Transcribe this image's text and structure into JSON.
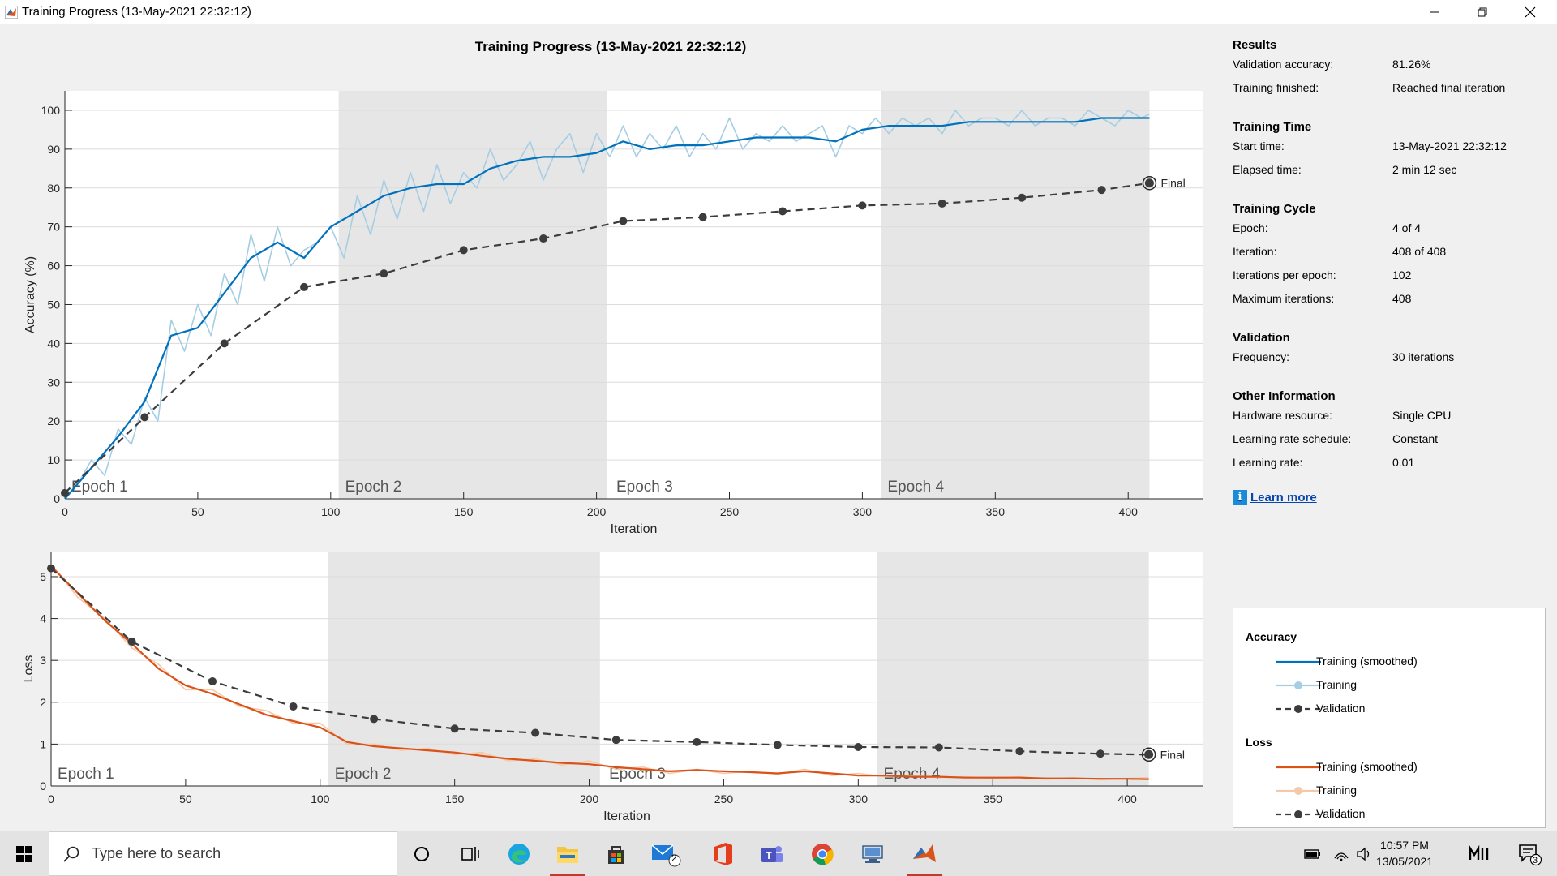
{
  "window": {
    "title": "Training Progress (13-May-2021 22:32:12)",
    "icons": {
      "app": "matlab-icon",
      "minimize": "minimize-icon",
      "maximize": "restore-icon",
      "close": "close-icon"
    }
  },
  "plot_title": "Training Progress (13-May-2021 22:32:12)",
  "chart_data": [
    {
      "type": "line",
      "title": "",
      "xlabel": "Iteration",
      "ylabel": "Accuracy (%)",
      "xlim": [
        0,
        428
      ],
      "ylim": [
        0,
        105
      ],
      "xticks": [
        0,
        50,
        100,
        150,
        200,
        250,
        300,
        350,
        400
      ],
      "yticks": [
        0,
        10,
        20,
        30,
        40,
        50,
        60,
        70,
        80,
        90,
        100
      ],
      "grid": true,
      "epochs": [
        {
          "label": "Epoch 1",
          "start": 0,
          "end": 102,
          "shaded": false
        },
        {
          "label": "Epoch 2",
          "start": 103,
          "end": 204,
          "shaded": true
        },
        {
          "label": "Epoch 3",
          "start": 205,
          "end": 306,
          "shaded": false
        },
        {
          "label": "Epoch 4",
          "start": 307,
          "end": 408,
          "shaded": true
        }
      ],
      "series": [
        {
          "name": "Training (smoothed)",
          "color": "#0072bd",
          "x": [
            0,
            10,
            20,
            30,
            40,
            50,
            60,
            70,
            80,
            90,
            100,
            110,
            120,
            130,
            140,
            150,
            160,
            170,
            180,
            190,
            200,
            210,
            220,
            230,
            240,
            250,
            260,
            270,
            280,
            290,
            300,
            310,
            320,
            330,
            340,
            350,
            360,
            370,
            380,
            390,
            400,
            408
          ],
          "y": [
            0,
            8,
            16,
            25,
            42,
            44,
            53,
            62,
            66,
            62,
            70,
            74,
            78,
            80,
            81,
            81,
            85,
            87,
            88,
            88,
            89,
            92,
            90,
            91,
            91,
            92,
            93,
            93,
            93,
            92,
            95,
            96,
            96,
            96,
            97,
            97,
            97,
            97,
            97,
            98,
            98,
            98
          ]
        },
        {
          "name": "Training",
          "color": "#a6cee3",
          "x": [
            0,
            5,
            10,
            15,
            20,
            25,
            30,
            35,
            40,
            45,
            50,
            55,
            60,
            65,
            70,
            75,
            80,
            85,
            90,
            95,
            100,
            105,
            110,
            115,
            120,
            125,
            130,
            135,
            140,
            145,
            150,
            155,
            160,
            165,
            170,
            175,
            180,
            185,
            190,
            195,
            200,
            205,
            210,
            215,
            220,
            225,
            230,
            235,
            240,
            245,
            250,
            255,
            260,
            265,
            270,
            275,
            280,
            285,
            290,
            295,
            300,
            305,
            310,
            315,
            320,
            325,
            330,
            335,
            340,
            345,
            350,
            355,
            360,
            365,
            370,
            375,
            380,
            385,
            390,
            395,
            400,
            405,
            408
          ],
          "y": [
            0,
            4,
            10,
            6,
            18,
            14,
            26,
            20,
            46,
            38,
            50,
            42,
            58,
            50,
            68,
            56,
            70,
            60,
            64,
            66,
            70,
            62,
            78,
            68,
            82,
            72,
            84,
            74,
            86,
            76,
            84,
            80,
            90,
            82,
            86,
            92,
            82,
            90,
            94,
            84,
            94,
            88,
            96,
            88,
            94,
            90,
            96,
            88,
            94,
            90,
            98,
            90,
            94,
            92,
            96,
            92,
            94,
            96,
            88,
            96,
            94,
            98,
            94,
            98,
            96,
            98,
            94,
            100,
            96,
            98,
            98,
            96,
            100,
            96,
            98,
            98,
            96,
            100,
            98,
            96,
            100,
            98,
            99
          ]
        },
        {
          "name": "Validation",
          "color": "#3c3c3c",
          "x": [
            0,
            30,
            60,
            90,
            120,
            150,
            180,
            210,
            240,
            270,
            300,
            330,
            360,
            390,
            408
          ],
          "y": [
            1.5,
            21,
            40,
            54.5,
            58,
            64,
            67,
            71.5,
            72.5,
            74,
            75.5,
            76,
            77.5,
            79.5,
            81.26
          ]
        }
      ],
      "final_label": "Final"
    },
    {
      "type": "line",
      "title": "",
      "xlabel": "Iteration",
      "ylabel": "Loss",
      "xlim": [
        0,
        428
      ],
      "ylim": [
        0,
        5.6
      ],
      "xticks": [
        0,
        50,
        100,
        150,
        200,
        250,
        300,
        350,
        400
      ],
      "yticks": [
        0,
        1,
        2,
        3,
        4,
        5
      ],
      "grid": true,
      "epochs": [
        {
          "label": "Epoch 1",
          "start": 0,
          "end": 102,
          "shaded": false
        },
        {
          "label": "Epoch 2",
          "start": 103,
          "end": 204,
          "shaded": true
        },
        {
          "label": "Epoch 3",
          "start": 205,
          "end": 306,
          "shaded": false
        },
        {
          "label": "Epoch 4",
          "start": 307,
          "end": 408,
          "shaded": true
        }
      ],
      "series": [
        {
          "name": "Training (smoothed)",
          "color": "#d95319",
          "x": [
            0,
            10,
            20,
            30,
            40,
            50,
            60,
            70,
            80,
            90,
            100,
            110,
            120,
            130,
            140,
            150,
            160,
            170,
            180,
            190,
            200,
            210,
            220,
            230,
            240,
            250,
            260,
            270,
            280,
            290,
            300,
            310,
            320,
            330,
            340,
            350,
            360,
            370,
            380,
            390,
            400,
            408
          ],
          "y": [
            5.25,
            4.6,
            3.95,
            3.4,
            2.8,
            2.4,
            2.2,
            1.95,
            1.7,
            1.55,
            1.4,
            1.05,
            0.95,
            0.9,
            0.85,
            0.8,
            0.72,
            0.65,
            0.6,
            0.55,
            0.52,
            0.45,
            0.4,
            0.35,
            0.38,
            0.35,
            0.33,
            0.3,
            0.35,
            0.3,
            0.25,
            0.25,
            0.22,
            0.22,
            0.2,
            0.2,
            0.2,
            0.18,
            0.18,
            0.17,
            0.17,
            0.16
          ]
        },
        {
          "name": "Training",
          "color": "#f5c8a8",
          "x": [
            0,
            10,
            20,
            30,
            40,
            50,
            60,
            70,
            80,
            90,
            100,
            110,
            120,
            130,
            140,
            150,
            160,
            170,
            180,
            190,
            200,
            210,
            220,
            230,
            240,
            250,
            260,
            270,
            280,
            290,
            300,
            310,
            320,
            330,
            340,
            350,
            360,
            370,
            380,
            390,
            400,
            408
          ],
          "y": [
            5.3,
            4.5,
            4.0,
            3.3,
            2.9,
            2.3,
            2.3,
            1.9,
            1.8,
            1.5,
            1.5,
            1.0,
            1.0,
            0.85,
            0.9,
            0.75,
            0.8,
            0.6,
            0.65,
            0.5,
            0.6,
            0.4,
            0.45,
            0.3,
            0.4,
            0.3,
            0.35,
            0.28,
            0.4,
            0.25,
            0.3,
            0.22,
            0.25,
            0.2,
            0.22,
            0.18,
            0.22,
            0.16,
            0.2,
            0.15,
            0.18,
            0.2
          ]
        },
        {
          "name": "Validation",
          "color": "#3c3c3c",
          "x": [
            0,
            30,
            60,
            90,
            120,
            150,
            180,
            210,
            240,
            270,
            300,
            330,
            360,
            390,
            408
          ],
          "y": [
            5.2,
            3.45,
            2.5,
            1.9,
            1.6,
            1.37,
            1.27,
            1.1,
            1.05,
            0.98,
            0.93,
            0.92,
            0.83,
            0.77,
            0.75
          ]
        }
      ],
      "final_label": "Final"
    }
  ],
  "results": {
    "sections": [
      {
        "title": "Results",
        "rows": [
          {
            "label": "Validation accuracy:",
            "value": "81.26%"
          },
          {
            "label": "Training finished:",
            "value": "Reached final iteration"
          }
        ]
      },
      {
        "title": "Training Time",
        "rows": [
          {
            "label": "Start time:",
            "value": "13-May-2021 22:32:12"
          },
          {
            "label": "Elapsed time:",
            "value": "2 min 12 sec"
          }
        ]
      },
      {
        "title": "Training Cycle",
        "rows": [
          {
            "label": "Epoch:",
            "value": "4 of 4"
          },
          {
            "label": "Iteration:",
            "value": "408 of 408"
          },
          {
            "label": "Iterations per epoch:",
            "value": "102"
          },
          {
            "label": "Maximum iterations:",
            "value": "408"
          }
        ]
      },
      {
        "title": "Validation",
        "rows": [
          {
            "label": "Frequency:",
            "value": "30 iterations"
          }
        ]
      },
      {
        "title": "Other Information",
        "rows": [
          {
            "label": "Hardware resource:",
            "value": "Single CPU"
          },
          {
            "label": "Learning rate schedule:",
            "value": "Constant"
          },
          {
            "label": "Learning rate:",
            "value": "0.01"
          }
        ]
      }
    ],
    "learn_more": "Learn more",
    "info_glyph": "i"
  },
  "legend": {
    "accuracy_title": "Accuracy",
    "loss_title": "Loss",
    "accuracy_items": [
      {
        "label": "Training (smoothed)",
        "color": "#0072bd"
      },
      {
        "label": "Training",
        "color": "#a6cee3"
      },
      {
        "label": "Validation",
        "color": "#3c3c3c"
      }
    ],
    "loss_items": [
      {
        "label": "Training (smoothed)",
        "color": "#d95319"
      },
      {
        "label": "Training",
        "color": "#f5c8a8"
      },
      {
        "label": "Validation",
        "color": "#3c3c3c"
      }
    ]
  },
  "taskbar": {
    "search_placeholder": "Type here to search",
    "apps": [
      "cortana-icon",
      "task-view-icon",
      "edge-icon",
      "file-explorer-icon",
      "store-icon",
      "mail-icon",
      "office-icon",
      "teams-icon",
      "chrome-icon",
      "network-app-icon",
      "matlab-icon"
    ],
    "mail_badge": "2",
    "time": "10:57 PM",
    "date": "13/05/2021",
    "notification_count": "3"
  }
}
